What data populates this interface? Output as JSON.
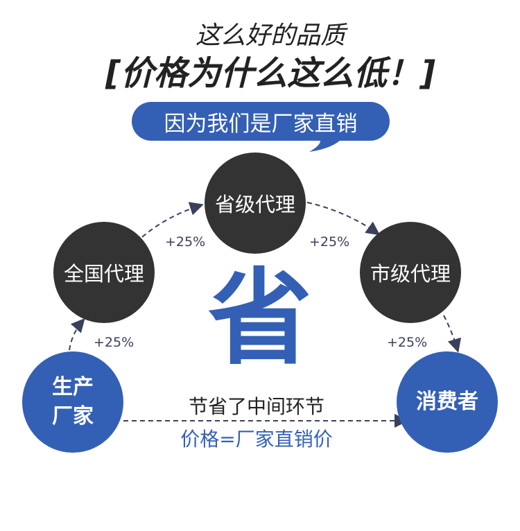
{
  "title": {
    "line1": "这么好的品质",
    "line2": "[价格为什么这么低！]"
  },
  "bubble": {
    "text": "因为我们是厂家直销"
  },
  "nodes": {
    "national": "全国代理",
    "provincial": "省级代理",
    "city": "市级代理",
    "manufacturer": [
      "生产",
      "厂家"
    ],
    "consumer": "消费者"
  },
  "markups": [
    "+25%",
    "+25%",
    "+25%",
    "+25%"
  ],
  "center": {
    "big_char": "省",
    "line1": "节省了中间环节",
    "line2": "价格=厂家直销价"
  },
  "colors": {
    "accent_blue": "#3360b5",
    "node_dark": "#333333",
    "arrow": "#3a3f5c"
  }
}
